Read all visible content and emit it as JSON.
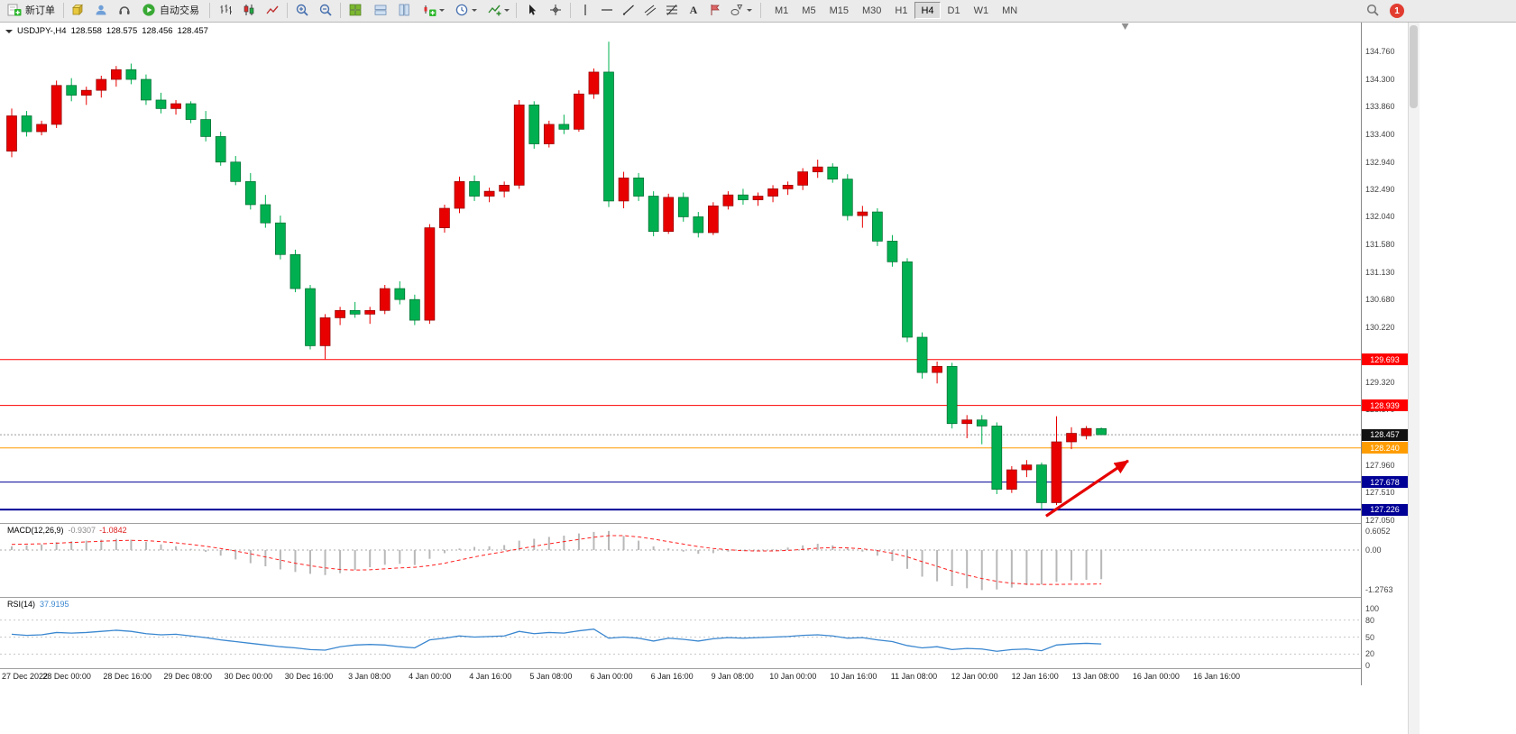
{
  "toolbar": {
    "new_order_label": "新订单",
    "auto_trading_label": "自动交易",
    "glyphs": {
      "text_tool": "A"
    },
    "timeframes": [
      "M1",
      "M5",
      "M15",
      "M30",
      "H1",
      "H4",
      "D1",
      "W1",
      "MN"
    ],
    "active_timeframe": "H4",
    "notification_count": "1"
  },
  "chart_header": {
    "symbol_period": "USDJPY-,H4",
    "open": "128.558",
    "high": "128.575",
    "low": "128.456",
    "close": "128.457"
  },
  "indicators": {
    "macd": {
      "title": "MACD(12,26,9)",
      "value_main": "-0.9307",
      "value_signal": "-1.0842"
    },
    "rsi": {
      "title": "RSI(14)",
      "value": "37.9195"
    }
  },
  "chart_data": {
    "type": "candlestick",
    "symbol": "USDJPY-",
    "timeframe": "H4",
    "up_color": "#e80000",
    "down_color": "#00b050",
    "price_axis": {
      "max": 134.76,
      "min": 127.05,
      "labels": [
        "134.760",
        "134.300",
        "133.860",
        "133.400",
        "132.940",
        "132.490",
        "132.040",
        "131.580",
        "131.130",
        "130.680",
        "130.220",
        "129.320",
        "128.870",
        "127.960",
        "127.510",
        "127.050"
      ]
    },
    "time_axis_labels": [
      "27 Dec 2022",
      "28 Dec 00:00",
      "28 Dec 16:00",
      "29 Dec 08:00",
      "30 Dec 00:00",
      "30 Dec 16:00",
      "3 Jan 08:00",
      "4 Jan 00:00",
      "4 Jan 16:00",
      "5 Jan 08:00",
      "6 Jan 00:00",
      "6 Jan 16:00",
      "9 Jan 08:00",
      "10 Jan 00:00",
      "10 Jan 16:00",
      "11 Jan 08:00",
      "12 Jan 00:00",
      "12 Jan 16:00",
      "13 Jan 08:00",
      "16 Jan 00:00",
      "16 Jan 16:00"
    ],
    "candles": [
      [
        133.12,
        133.82,
        133.02,
        133.7
      ],
      [
        133.7,
        133.78,
        133.36,
        133.44
      ],
      [
        133.44,
        133.62,
        133.38,
        133.56
      ],
      [
        133.56,
        134.28,
        133.5,
        134.2
      ],
      [
        134.2,
        134.32,
        133.94,
        134.04
      ],
      [
        134.04,
        134.18,
        133.88,
        134.12
      ],
      [
        134.12,
        134.36,
        134.0,
        134.3
      ],
      [
        134.3,
        134.52,
        134.18,
        134.46
      ],
      [
        134.46,
        134.56,
        134.22,
        134.3
      ],
      [
        134.3,
        134.38,
        133.88,
        133.96
      ],
      [
        133.96,
        134.08,
        133.74,
        133.82
      ],
      [
        133.82,
        133.96,
        133.72,
        133.9
      ],
      [
        133.9,
        133.94,
        133.58,
        133.64
      ],
      [
        133.64,
        133.78,
        133.28,
        133.36
      ],
      [
        133.36,
        133.44,
        132.88,
        132.94
      ],
      [
        132.94,
        133.04,
        132.56,
        132.62
      ],
      [
        132.62,
        132.76,
        132.16,
        132.24
      ],
      [
        132.24,
        132.4,
        131.86,
        131.94
      ],
      [
        131.94,
        132.06,
        131.34,
        131.42
      ],
      [
        131.42,
        131.5,
        130.8,
        130.86
      ],
      [
        130.86,
        130.92,
        129.86,
        129.92
      ],
      [
        129.92,
        130.44,
        129.7,
        130.38
      ],
      [
        130.38,
        130.56,
        130.26,
        130.5
      ],
      [
        130.5,
        130.64,
        130.38,
        130.44
      ],
      [
        130.44,
        130.56,
        130.28,
        130.5
      ],
      [
        130.5,
        130.92,
        130.44,
        130.86
      ],
      [
        130.86,
        130.98,
        130.6,
        130.68
      ],
      [
        130.68,
        130.76,
        130.26,
        130.34
      ],
      [
        130.34,
        131.92,
        130.28,
        131.86
      ],
      [
        131.86,
        132.24,
        131.78,
        132.18
      ],
      [
        132.18,
        132.7,
        132.1,
        132.62
      ],
      [
        132.62,
        132.72,
        132.3,
        132.38
      ],
      [
        132.38,
        132.52,
        132.28,
        132.46
      ],
      [
        132.46,
        132.62,
        132.36,
        132.56
      ],
      [
        132.56,
        133.96,
        132.5,
        133.88
      ],
      [
        133.88,
        133.94,
        133.16,
        133.24
      ],
      [
        133.24,
        133.62,
        133.18,
        133.56
      ],
      [
        133.56,
        133.72,
        133.4,
        133.48
      ],
      [
        133.48,
        134.12,
        133.44,
        134.06
      ],
      [
        134.06,
        134.48,
        133.98,
        134.42
      ],
      [
        134.42,
        134.92,
        132.2,
        132.3
      ],
      [
        132.3,
        132.78,
        132.18,
        132.68
      ],
      [
        132.68,
        132.76,
        132.3,
        132.38
      ],
      [
        132.38,
        132.46,
        131.72,
        131.8
      ],
      [
        131.8,
        132.42,
        131.76,
        132.36
      ],
      [
        132.36,
        132.44,
        131.96,
        132.04
      ],
      [
        132.04,
        132.12,
        131.7,
        131.78
      ],
      [
        131.78,
        132.28,
        131.74,
        132.22
      ],
      [
        132.22,
        132.46,
        132.16,
        132.4
      ],
      [
        132.4,
        132.5,
        132.24,
        132.32
      ],
      [
        132.32,
        132.44,
        132.22,
        132.38
      ],
      [
        132.38,
        132.56,
        132.28,
        132.5
      ],
      [
        132.5,
        132.62,
        132.4,
        132.56
      ],
      [
        132.56,
        132.84,
        132.48,
        132.78
      ],
      [
        132.78,
        132.98,
        132.68,
        132.86
      ],
      [
        132.86,
        132.92,
        132.6,
        132.66
      ],
      [
        132.66,
        132.74,
        131.98,
        132.06
      ],
      [
        132.06,
        132.22,
        131.86,
        132.12
      ],
      [
        132.12,
        132.18,
        131.56,
        131.64
      ],
      [
        131.64,
        131.74,
        131.22,
        131.3
      ],
      [
        131.3,
        131.36,
        129.98,
        130.06
      ],
      [
        130.06,
        130.14,
        129.38,
        129.48
      ],
      [
        129.48,
        129.66,
        129.3,
        129.58
      ],
      [
        129.58,
        129.64,
        128.56,
        128.64
      ],
      [
        128.64,
        128.78,
        128.4,
        128.7
      ],
      [
        128.7,
        128.78,
        128.3,
        128.6
      ],
      [
        128.6,
        128.66,
        127.48,
        127.56
      ],
      [
        127.56,
        127.94,
        127.5,
        127.88
      ],
      [
        127.88,
        128.04,
        127.76,
        127.96
      ],
      [
        127.96,
        128.0,
        127.23,
        127.34
      ],
      [
        127.34,
        128.76,
        127.3,
        128.34
      ],
      [
        128.34,
        128.58,
        128.22,
        128.48
      ],
      [
        128.44,
        128.6,
        128.38,
        128.56
      ],
      [
        128.558,
        128.575,
        128.456,
        128.457
      ]
    ],
    "levels": [
      {
        "price": 129.693,
        "label": "129.693",
        "line_color": "#ff0000",
        "line_style": "solid",
        "line_width": 1,
        "badge_bg": "#ff0000"
      },
      {
        "price": 128.939,
        "label": "128.939",
        "line_color": "#ff0000",
        "line_style": "solid",
        "line_width": 1,
        "badge_bg": "#ff0000"
      },
      {
        "price": 128.457,
        "label": "128.457",
        "line_color": "#9a9a9a",
        "line_style": "dotted",
        "line_width": 1,
        "badge_bg": "#111111"
      },
      {
        "price": 128.24,
        "label": "128.240",
        "line_color": "#ff9c00",
        "line_style": "solid",
        "line_width": 1,
        "badge_bg": "#ff9c00"
      },
      {
        "price": 127.678,
        "label": "127.678",
        "line_color": "#000096",
        "line_style": "solid",
        "line_width": 1,
        "badge_bg": "#000096"
      },
      {
        "price": 127.226,
        "label": "127.226",
        "line_color": "#000096",
        "line_style": "solid",
        "line_width": 2,
        "badge_bg": "#000096"
      }
    ],
    "annotation_arrow": {
      "from_index": 69.3,
      "from_price": 127.12,
      "to_index": 74.8,
      "to_price": 128.03,
      "color": "#e60000"
    },
    "shift_marker_index": 74.6,
    "macd": {
      "scale_labels": [
        "0.6052",
        "0.00",
        "-1.2763"
      ],
      "histogram": [
        0.12,
        0.15,
        0.18,
        0.25,
        0.28,
        0.3,
        0.33,
        0.36,
        0.33,
        0.26,
        0.18,
        0.12,
        0.04,
        -0.06,
        -0.18,
        -0.3,
        -0.42,
        -0.52,
        -0.62,
        -0.7,
        -0.76,
        -0.8,
        -0.74,
        -0.64,
        -0.55,
        -0.47,
        -0.44,
        -0.48,
        -0.28,
        -0.1,
        0.05,
        0.1,
        0.12,
        0.16,
        0.3,
        0.36,
        0.42,
        0.46,
        0.53,
        0.58,
        0.61,
        0.45,
        0.3,
        0.12,
        0.05,
        -0.05,
        -0.12,
        -0.1,
        -0.05,
        -0.02,
        -0.04,
        0.02,
        0.08,
        0.15,
        0.2,
        0.15,
        0.05,
        -0.05,
        -0.18,
        -0.35,
        -0.6,
        -0.85,
        -1.0,
        -1.15,
        -1.22,
        -1.28,
        -1.26,
        -1.2,
        -1.12,
        -1.1,
        -1.02,
        -0.97,
        -0.95,
        -0.9307
      ],
      "signal": [
        0.18,
        0.19,
        0.2,
        0.22,
        0.24,
        0.26,
        0.28,
        0.3,
        0.31,
        0.3,
        0.27,
        0.23,
        0.18,
        0.12,
        0.05,
        -0.03,
        -0.12,
        -0.22,
        -0.32,
        -0.42,
        -0.5,
        -0.57,
        -0.62,
        -0.64,
        -0.63,
        -0.6,
        -0.57,
        -0.55,
        -0.5,
        -0.42,
        -0.32,
        -0.22,
        -0.13,
        -0.05,
        0.04,
        0.12,
        0.2,
        0.27,
        0.34,
        0.41,
        0.46,
        0.46,
        0.42,
        0.35,
        0.27,
        0.19,
        0.11,
        0.05,
        0.01,
        -0.02,
        -0.03,
        -0.03,
        -0.01,
        0.02,
        0.06,
        0.08,
        0.07,
        0.04,
        -0.02,
        -0.1,
        -0.22,
        -0.37,
        -0.52,
        -0.67,
        -0.8,
        -0.91,
        -1.0,
        -1.06,
        -1.09,
        -1.1,
        -1.1,
        -1.09,
        -1.09,
        -1.0842
      ]
    },
    "rsi": {
      "scale_labels": [
        "100",
        "80",
        "50",
        "20",
        "0"
      ],
      "levels": [
        80,
        50,
        20
      ],
      "values": [
        55,
        53,
        54,
        58,
        57,
        58,
        60,
        62,
        60,
        56,
        54,
        55,
        52,
        49,
        45,
        42,
        39,
        36,
        33,
        31,
        28,
        27,
        33,
        36,
        37,
        36,
        33,
        31,
        45,
        48,
        52,
        50,
        51,
        52,
        60,
        56,
        58,
        57,
        61,
        64,
        48,
        50,
        48,
        43,
        48,
        46,
        43,
        47,
        49,
        48,
        49,
        50,
        51,
        53,
        54,
        52,
        48,
        49,
        45,
        42,
        35,
        31,
        33,
        28,
        30,
        29,
        25,
        28,
        29,
        26,
        36,
        38,
        39,
        37.92
      ]
    }
  }
}
